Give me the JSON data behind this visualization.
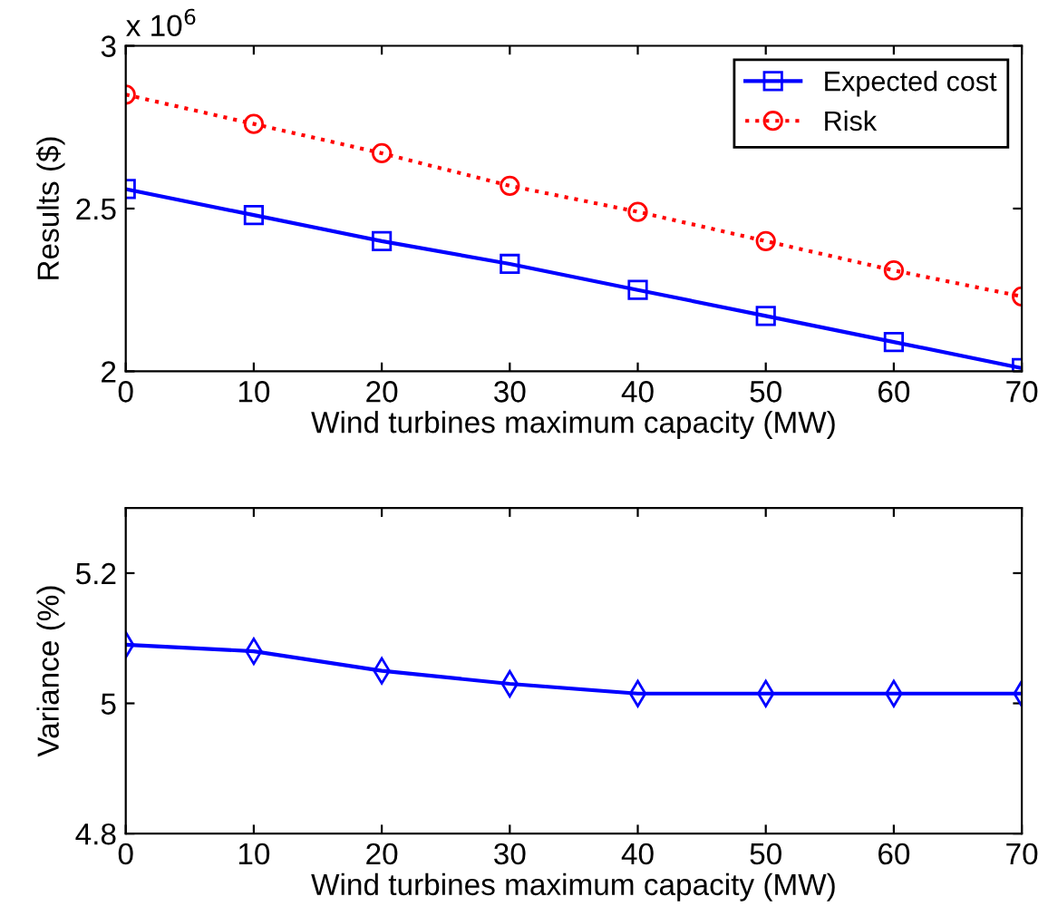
{
  "chart_data": [
    {
      "type": "line",
      "xlabel": "Wind turbines maximum capacity (MW)",
      "ylabel": "Results ($)",
      "annotations": [
        "x 10$^{6}$"
      ],
      "x": [
        0,
        10,
        20,
        30,
        40,
        50,
        60,
        70
      ],
      "xlim": [
        0,
        70
      ],
      "xticks": [
        0,
        10,
        20,
        30,
        40,
        50,
        60,
        70
      ],
      "ylim": [
        2,
        3
      ],
      "yticks": [
        2,
        2.5,
        3
      ],
      "legend": "top right",
      "grid": false,
      "series": [
        {
          "name": "Expected cost",
          "color": "#0000ff",
          "marker": "square",
          "line_style": "solid",
          "values": [
            2.56,
            2.48,
            2.4,
            2.33,
            2.25,
            2.17,
            2.09,
            2.01
          ]
        },
        {
          "name": "Risk",
          "color": "#ff0000",
          "marker": "circle",
          "line_style": "dotted",
          "values": [
            2.85,
            2.76,
            2.67,
            2.57,
            2.49,
            2.4,
            2.31,
            2.23
          ]
        }
      ]
    },
    {
      "type": "line",
      "xlabel": "Wind turbines maximum capacity (MW)",
      "ylabel": "Variance (%)",
      "x": [
        0,
        10,
        20,
        30,
        40,
        50,
        60,
        70
      ],
      "xlim": [
        0,
        70
      ],
      "xticks": [
        0,
        10,
        20,
        30,
        40,
        50,
        60,
        70
      ],
      "ylim": [
        4.8,
        5.3
      ],
      "yticks": [
        4.8,
        5,
        5.2
      ],
      "grid": false,
      "legend": false,
      "series": [
        {
          "color": "#0000ff",
          "marker": "diamond",
          "line_style": "solid",
          "values": [
            5.09,
            5.08,
            5.05,
            5.03,
            5.015,
            5.015,
            5.015,
            5.015
          ]
        }
      ]
    }
  ]
}
